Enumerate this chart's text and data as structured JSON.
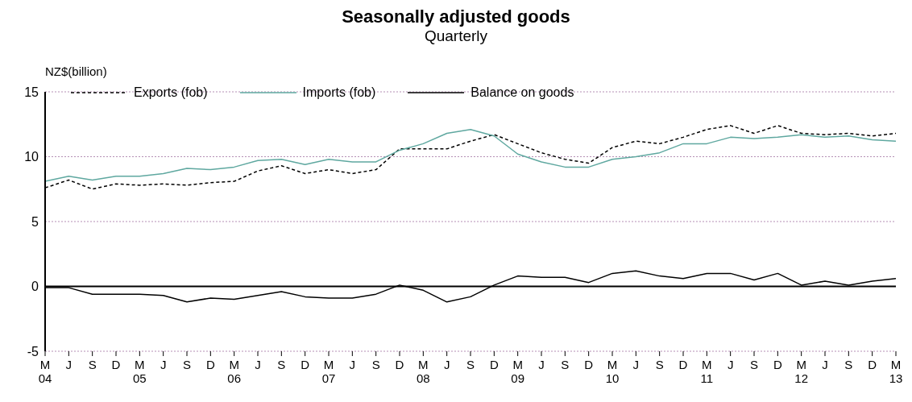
{
  "chart_data": {
    "type": "line",
    "title": "Seasonally adjusted goods",
    "subtitle": "Quarterly",
    "ylabel": "NZ$(billion)",
    "categories": [
      "M\n04",
      "J",
      "S",
      "D",
      "M\n05",
      "J",
      "S",
      "D",
      "M\n06",
      "J",
      "S",
      "D",
      "M\n07",
      "J",
      "S",
      "D",
      "M\n08",
      "J",
      "S",
      "D",
      "M\n09",
      "J",
      "S",
      "D",
      "M\n10",
      "J",
      "S",
      "D",
      "M\n11",
      "J",
      "S",
      "D",
      "M\n12",
      "J",
      "S",
      "D",
      "M\n13"
    ],
    "series": [
      {
        "name": "Exports (fob)",
        "color": "#000000",
        "line_style": "dashed",
        "values": [
          7.6,
          8.2,
          7.5,
          7.9,
          7.8,
          7.9,
          7.8,
          8.0,
          8.1,
          8.9,
          9.3,
          8.7,
          9.0,
          8.7,
          9.0,
          10.6,
          10.6,
          10.6,
          11.2,
          11.7,
          11.0,
          10.3,
          9.8,
          9.5,
          10.7,
          11.2,
          11.0,
          11.5,
          12.1,
          12.4,
          11.8,
          12.4,
          11.8,
          11.7,
          11.8,
          11.6,
          11.8
        ]
      },
      {
        "name": "Imports (fob)",
        "color": "#5fa8a0",
        "line_style": "solid",
        "values": [
          8.1,
          8.5,
          8.2,
          8.5,
          8.5,
          8.7,
          9.1,
          9.0,
          9.2,
          9.7,
          9.8,
          9.4,
          9.8,
          9.6,
          9.6,
          10.5,
          11.0,
          11.8,
          12.1,
          11.6,
          10.2,
          9.6,
          9.2,
          9.2,
          9.8,
          10.0,
          10.3,
          11.0,
          11.0,
          11.5,
          11.4,
          11.5,
          11.7,
          11.5,
          11.6,
          11.3,
          11.2
        ]
      },
      {
        "name": "Balance on goods",
        "color": "#000000",
        "line_style": "solid",
        "values": [
          -0.1,
          -0.1,
          -0.6,
          -0.6,
          -0.6,
          -0.7,
          -1.2,
          -0.9,
          -1.0,
          -0.7,
          -0.4,
          -0.8,
          -0.9,
          -0.9,
          -0.6,
          0.1,
          -0.3,
          -1.2,
          -0.8,
          0.1,
          0.8,
          0.7,
          0.7,
          0.3,
          1.0,
          1.2,
          0.8,
          0.6,
          1.0,
          1.0,
          0.5,
          1.0,
          0.1,
          0.4,
          0.1,
          0.4,
          0.6
        ]
      }
    ],
    "ylim": [
      -5,
      15
    ],
    "yticks": [
      -5,
      0,
      5,
      10,
      15
    ],
    "grid": "y",
    "legend": "top",
    "marker": "none",
    "ref_lines": [
      {
        "axis": "y",
        "value": 0,
        "color": "#000000"
      }
    ]
  }
}
